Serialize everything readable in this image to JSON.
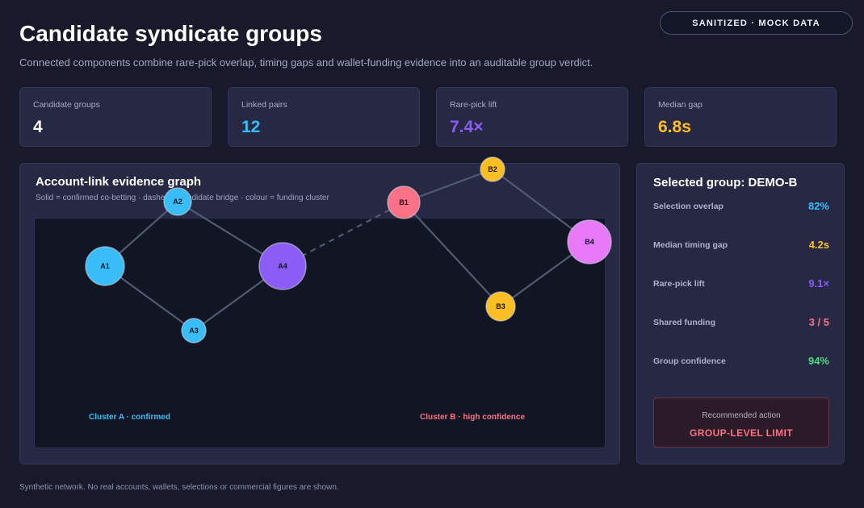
{
  "badge": "SANITIZED · MOCK DATA",
  "header": {
    "title": "Candidate syndicate groups",
    "subtitle": "Connected components combine rare-pick overlap, timing gaps and wallet-funding evidence into an auditable group verdict."
  },
  "kpis": [
    {
      "label": "Candidate groups",
      "value": "4",
      "color": "#ffffff"
    },
    {
      "label": "Linked pairs",
      "value": "12",
      "color": "#38bdf8"
    },
    {
      "label": "Rare-pick lift",
      "value": "7.4×",
      "color": "#8b5cf6"
    },
    {
      "label": "Median gap",
      "value": "6.8s",
      "color": "#fbbf24"
    }
  ],
  "graph": {
    "title": "Account-link evidence graph",
    "subtitle": "Solid = confirmed co-betting · dashed = candidate bridge · colour = funding cluster",
    "nodes": [
      {
        "id": "A1",
        "color": "#38bdf8"
      },
      {
        "id": "A2",
        "color": "#38bdf8"
      },
      {
        "id": "A3",
        "color": "#38bdf8"
      },
      {
        "id": "A4",
        "color": "#8b5cf6"
      },
      {
        "id": "B1",
        "color": "#fb7185"
      },
      {
        "id": "B2",
        "color": "#fbbf24"
      },
      {
        "id": "B3",
        "color": "#fbbf24"
      },
      {
        "id": "B4",
        "color": "#e879f9"
      }
    ],
    "edges": [
      {
        "from": "A1",
        "to": "A2",
        "style": "solid"
      },
      {
        "from": "A1",
        "to": "A3",
        "style": "solid"
      },
      {
        "from": "A2",
        "to": "A4",
        "style": "solid"
      },
      {
        "from": "A3",
        "to": "A4",
        "style": "solid"
      },
      {
        "from": "A4",
        "to": "B1",
        "style": "dashed"
      },
      {
        "from": "B1",
        "to": "B2",
        "style": "solid"
      },
      {
        "from": "B2",
        "to": "B4",
        "style": "solid"
      },
      {
        "from": "B1",
        "to": "B3",
        "style": "solid"
      },
      {
        "from": "B3",
        "to": "B4",
        "style": "solid"
      }
    ],
    "clusters": [
      {
        "label": "Cluster A · confirmed",
        "color": "#38bdf8"
      },
      {
        "label": "Cluster B · high confidence",
        "color": "#fb7185"
      }
    ]
  },
  "selected": {
    "title": "Selected group: DEMO-B",
    "metrics": [
      {
        "label": "Selection overlap",
        "value": "82%",
        "color": "#38bdf8"
      },
      {
        "label": "Median timing gap",
        "value": "4.2s",
        "color": "#fbbf24"
      },
      {
        "label": "Rare-pick lift",
        "value": "9.1×",
        "color": "#8b5cf6"
      },
      {
        "label": "Shared funding",
        "value": "3 / 5",
        "color": "#fb7185"
      },
      {
        "label": "Group confidence",
        "value": "94%",
        "color": "#4ade80"
      }
    ],
    "action": {
      "label": "Recommended action",
      "value": "GROUP-LEVEL LIMIT",
      "color": "#fb7185"
    }
  },
  "footer": "Synthetic network. No real accounts, wallets, selections or commercial figures are shown."
}
